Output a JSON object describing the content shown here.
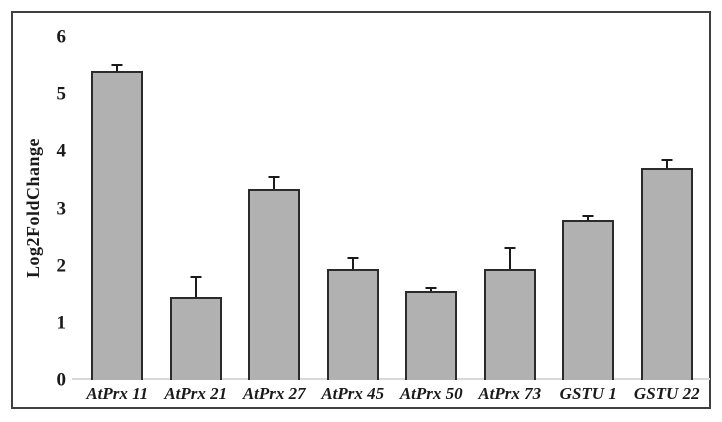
{
  "figure": {
    "type_label": "bar-chart-figure"
  },
  "chart_data": {
    "type": "bar",
    "title": "",
    "xlabel": "",
    "ylabel": "Log2FoldChange",
    "categories": [
      "AtPrx 11",
      "AtPrx 21",
      "AtPrx 27",
      "AtPrx 45",
      "AtPrx 50",
      "AtPrx 73",
      "GSTU 1",
      "GSTU 22"
    ],
    "values": [
      5.4,
      1.45,
      3.35,
      1.95,
      1.55,
      1.95,
      2.8,
      3.7
    ],
    "errors": [
      0.12,
      0.37,
      0.22,
      0.2,
      0.07,
      0.38,
      0.09,
      0.16
    ],
    "error_bars": "upper only",
    "ylim": [
      0,
      6
    ],
    "yticks": [
      0,
      1,
      2,
      3,
      4,
      5,
      6
    ],
    "grid": "off",
    "legend": "none",
    "colors": {
      "bar_fill": "#b1b1b1",
      "bar_border": "#2b2b2b",
      "error_bar": "#1a1a1a",
      "baseline": "#d9d9d9",
      "frame_border": "#404040",
      "text": "#1a1a1a",
      "background": "#ffffff"
    }
  }
}
